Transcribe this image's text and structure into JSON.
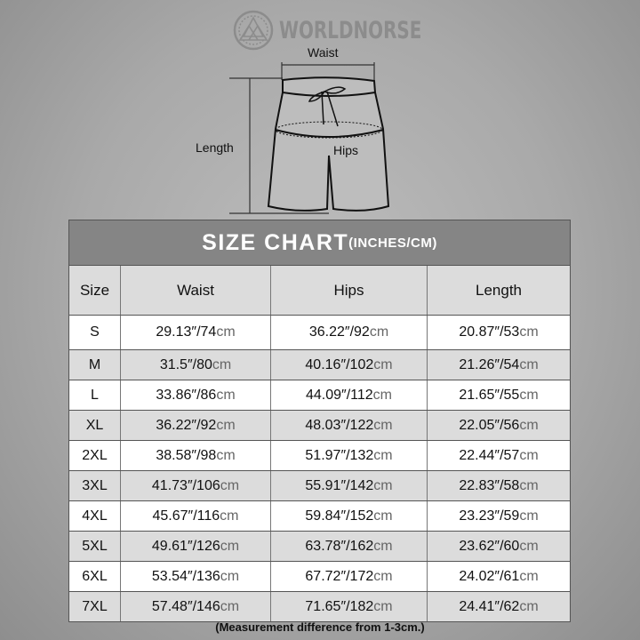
{
  "brand": {
    "name": "WORLDNORSE"
  },
  "diagram": {
    "waist": "Waist",
    "hips": "Hips",
    "length": "Length"
  },
  "table": {
    "title": "SIZE CHART",
    "title_units": "(INCHES/CM)",
    "headers": [
      "Size",
      "Waist",
      "Hips",
      "Length"
    ],
    "rows": [
      {
        "size": "S",
        "waist": "29.13″/74",
        "hips": "36.22″/92",
        "length": "20.87″/53"
      },
      {
        "size": "M",
        "waist": "31.5″/80",
        "hips": "40.16″/102",
        "length": "21.26″/54"
      },
      {
        "size": "L",
        "waist": "33.86″/86",
        "hips": "44.09″/112",
        "length": "21.65″/55"
      },
      {
        "size": "XL",
        "waist": "36.22″/92",
        "hips": "48.03″/122",
        "length": "22.05″/56"
      },
      {
        "size": "2XL",
        "waist": "38.58″/98",
        "hips": "51.97″/132",
        "length": "22.44″/57"
      },
      {
        "size": "3XL",
        "waist": "41.73″/106",
        "hips": "55.91″/142",
        "length": "22.83″/58"
      },
      {
        "size": "4XL",
        "waist": "45.67″/116",
        "hips": "59.84″/152",
        "length": "23.23″/59"
      },
      {
        "size": "5XL",
        "waist": "49.61″/126",
        "hips": "63.78″/162",
        "length": "23.62″/60"
      },
      {
        "size": "6XL",
        "waist": "53.54″/136",
        "hips": "67.72″/172",
        "length": "24.02″/61"
      },
      {
        "size": "7XL",
        "waist": "57.48″/146",
        "hips": "71.65″/182",
        "length": "24.41″/62"
      }
    ],
    "unit": "cm"
  },
  "note": "(Measurement difference from 1-3cm.)"
}
